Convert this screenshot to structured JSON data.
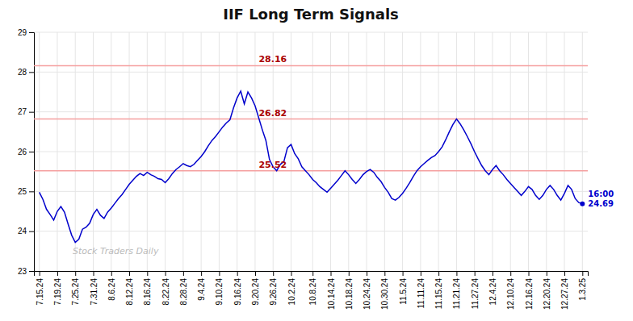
{
  "chart_data": {
    "type": "line",
    "title": "IIF Long Term Signals",
    "annotations": [
      "Stock Traders Daily",
      "16:00\n24.69"
    ],
    "color": "#0000cc",
    "grid": true,
    "ylim": [
      23,
      29
    ],
    "yticks": [
      23,
      24,
      25,
      26,
      27,
      28,
      29
    ],
    "hlines": [
      {
        "value": 28.16,
        "label": "28.16",
        "color": "#f5a0a0",
        "label_color": "#aa0000"
      },
      {
        "value": 26.82,
        "label": "26.82",
        "color": "#f5a0a0",
        "label_color": "#aa0000"
      },
      {
        "value": 25.52,
        "label": "25.52",
        "color": "#f5a0a0",
        "label_color": "#aa0000"
      }
    ],
    "categories": [
      "7.15.24",
      null,
      null,
      null,
      null,
      "7.19.24",
      null,
      null,
      null,
      null,
      "7.25.24",
      null,
      null,
      null,
      null,
      "7.31.24",
      null,
      null,
      null,
      null,
      "8.6.24",
      null,
      null,
      null,
      null,
      "8.12.24",
      null,
      null,
      null,
      null,
      "8.16.24",
      null,
      null,
      null,
      null,
      "8.22.24",
      null,
      null,
      null,
      null,
      "8.28.24",
      null,
      null,
      null,
      null,
      "9.4.24",
      null,
      null,
      null,
      null,
      "9.10.24",
      null,
      null,
      null,
      null,
      "9.16.24",
      null,
      null,
      null,
      null,
      "9.20.24",
      null,
      null,
      null,
      null,
      "9.26.24",
      null,
      null,
      null,
      null,
      "10.2.24",
      null,
      null,
      null,
      null,
      null,
      "10.8.24",
      null,
      null,
      null,
      null,
      "10.14.24",
      null,
      null,
      null,
      null,
      "10.18.24",
      null,
      null,
      null,
      null,
      "10.24.24",
      null,
      null,
      null,
      null,
      "10.30.24",
      null,
      null,
      null,
      null,
      "11.5.24",
      null,
      null,
      null,
      null,
      "11.11.24",
      null,
      null,
      null,
      null,
      "11.15.24",
      null,
      null,
      null,
      null,
      "11.21.24",
      null,
      null,
      null,
      null,
      "11.27.24",
      null,
      null,
      null,
      null,
      "12.4.24",
      null,
      null,
      null,
      null,
      "12.10.24",
      null,
      null,
      null,
      null,
      "12.16.24",
      null,
      null,
      null,
      null,
      "12.20.24",
      null,
      null,
      null,
      null,
      "12.27.24",
      null,
      null,
      null,
      null,
      "1.3.25"
    ],
    "values": [
      24.98,
      24.8,
      24.55,
      24.42,
      24.28,
      24.5,
      24.62,
      24.48,
      24.18,
      23.9,
      23.72,
      23.8,
      24.05,
      24.1,
      24.2,
      24.42,
      24.55,
      24.4,
      24.32,
      24.48,
      24.58,
      24.7,
      24.82,
      24.92,
      25.05,
      25.18,
      25.28,
      25.38,
      25.45,
      25.4,
      25.48,
      25.42,
      25.38,
      25.32,
      25.3,
      25.22,
      25.32,
      25.45,
      25.55,
      25.62,
      25.7,
      25.65,
      25.62,
      25.68,
      25.78,
      25.88,
      26.0,
      26.15,
      26.28,
      26.38,
      26.5,
      26.62,
      26.72,
      26.8,
      27.1,
      27.35,
      27.52,
      27.2,
      27.5,
      27.35,
      27.15,
      26.85,
      26.55,
      26.28,
      25.8,
      25.62,
      25.52,
      25.68,
      25.75,
      26.1,
      26.18,
      25.95,
      25.82,
      25.62,
      25.52,
      25.42,
      25.3,
      25.22,
      25.12,
      25.05,
      24.98,
      25.08,
      25.18,
      25.28,
      25.4,
      25.52,
      25.42,
      25.3,
      25.2,
      25.3,
      25.42,
      25.5,
      25.55,
      25.48,
      25.35,
      25.25,
      25.1,
      24.98,
      24.82,
      24.78,
      24.85,
      24.95,
      25.08,
      25.22,
      25.38,
      25.52,
      25.62,
      25.7,
      25.78,
      25.85,
      25.9,
      26.0,
      26.12,
      26.3,
      26.5,
      26.68,
      26.82,
      26.7,
      26.55,
      26.38,
      26.2,
      26.0,
      25.82,
      25.65,
      25.52,
      25.42,
      25.55,
      25.65,
      25.52,
      25.42,
      25.3,
      25.2,
      25.1,
      25.0,
      24.9,
      25.0,
      25.12,
      25.05,
      24.9,
      24.8,
      24.9,
      25.05,
      25.15,
      25.05,
      24.9,
      24.78,
      24.95,
      25.15,
      25.05,
      24.82,
      24.72,
      24.69
    ]
  }
}
